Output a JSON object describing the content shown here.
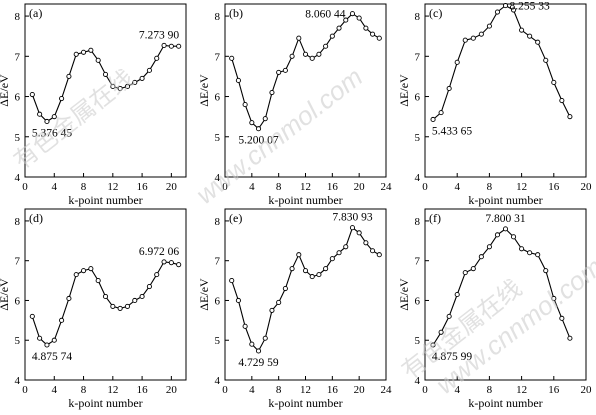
{
  "chart_data": [
    {
      "type": "line",
      "panel_label": "(a)",
      "xlabel": "k-point number",
      "ylabel": "ΔE/eV",
      "xlim": [
        0,
        22
      ],
      "ylim": [
        4,
        8.3
      ],
      "xticks": [
        0,
        4,
        8,
        12,
        16,
        20
      ],
      "yticks": [
        4,
        5,
        6,
        7,
        8
      ],
      "series": [
        {
          "x": [
            1,
            2,
            3,
            4,
            5,
            6,
            7,
            8,
            9,
            10,
            11,
            12,
            13,
            14,
            15,
            16,
            17,
            18,
            19,
            20,
            21
          ],
          "values": [
            6.05,
            5.56,
            5.38,
            5.5,
            5.95,
            6.5,
            7.05,
            7.1,
            7.15,
            6.9,
            6.55,
            6.25,
            6.2,
            6.25,
            6.35,
            6.45,
            6.65,
            6.95,
            7.27,
            7.25,
            7.25
          ]
        }
      ],
      "annotations": [
        {
          "text": "5.376 45",
          "x": 3,
          "y": 5.38,
          "pos": "below"
        },
        {
          "text": "7.273 90",
          "x": 19,
          "y": 7.27,
          "pos": "above"
        }
      ]
    },
    {
      "type": "line",
      "panel_label": "(b)",
      "xlabel": "k-point number",
      "ylabel": "ΔE/eV",
      "xlim": [
        0,
        24
      ],
      "ylim": [
        4,
        8.3
      ],
      "xticks": [
        0,
        4,
        8,
        12,
        16,
        20,
        24
      ],
      "yticks": [
        4,
        5,
        6,
        7,
        8
      ],
      "series": [
        {
          "x": [
            1,
            2,
            3,
            4,
            5,
            6,
            7,
            8,
            9,
            10,
            11,
            12,
            13,
            14,
            15,
            16,
            17,
            18,
            19,
            20,
            21,
            22,
            23
          ],
          "values": [
            6.95,
            6.4,
            5.8,
            5.35,
            5.2,
            5.45,
            6.1,
            6.6,
            6.65,
            7.0,
            7.45,
            7.05,
            6.95,
            7.05,
            7.25,
            7.5,
            7.7,
            7.9,
            8.06,
            7.95,
            7.7,
            7.55,
            7.45
          ]
        }
      ],
      "annotations": [
        {
          "text": "5.200 07",
          "x": 5,
          "y": 5.2,
          "pos": "below"
        },
        {
          "text": "8.060 44",
          "x": 19,
          "y": 8.06,
          "pos": "left"
        }
      ]
    },
    {
      "type": "line",
      "panel_label": "(c)",
      "xlabel": "k-point number",
      "ylabel": "ΔE/eV",
      "xlim": [
        0,
        20
      ],
      "ylim": [
        4,
        8.3
      ],
      "xticks": [
        0,
        4,
        8,
        12,
        16,
        20
      ],
      "yticks": [
        4,
        5,
        6,
        7,
        8
      ],
      "series": [
        {
          "x": [
            1,
            2,
            3,
            4,
            5,
            6,
            7,
            8,
            9,
            10,
            11,
            12,
            13,
            14,
            15,
            16,
            17,
            18
          ],
          "values": [
            5.43,
            5.6,
            6.2,
            6.85,
            7.4,
            7.45,
            7.55,
            7.75,
            8.1,
            8.26,
            8.15,
            7.65,
            7.5,
            7.35,
            6.9,
            6.35,
            5.9,
            5.5
          ]
        }
      ],
      "annotations": [
        {
          "text": "5.433 65",
          "x": 1,
          "y": 5.43,
          "pos": "below"
        },
        {
          "text": "8.255 33",
          "x": 10,
          "y": 8.26,
          "pos": "right"
        }
      ]
    },
    {
      "type": "line",
      "panel_label": "(d)",
      "xlabel": "k-point number",
      "ylabel": "ΔE/eV",
      "xlim": [
        0,
        22
      ],
      "ylim": [
        4,
        8.3
      ],
      "xticks": [
        0,
        4,
        8,
        12,
        16,
        20
      ],
      "yticks": [
        4,
        5,
        6,
        7,
        8
      ],
      "series": [
        {
          "x": [
            1,
            2,
            3,
            4,
            5,
            6,
            7,
            8,
            9,
            10,
            11,
            12,
            13,
            14,
            15,
            16,
            17,
            18,
            19,
            20,
            21
          ],
          "values": [
            5.6,
            5.05,
            4.88,
            5.0,
            5.5,
            6.05,
            6.65,
            6.75,
            6.8,
            6.5,
            6.1,
            5.85,
            5.8,
            5.85,
            6.0,
            6.1,
            6.35,
            6.65,
            6.97,
            6.95,
            6.9
          ]
        }
      ],
      "annotations": [
        {
          "text": "4.875 74",
          "x": 3,
          "y": 4.88,
          "pos": "below"
        },
        {
          "text": "6.972 06",
          "x": 19,
          "y": 6.97,
          "pos": "above"
        }
      ]
    },
    {
      "type": "line",
      "panel_label": "(e)",
      "xlabel": "k-point number",
      "ylabel": "ΔE/eV",
      "xlim": [
        0,
        24
      ],
      "ylim": [
        4,
        8.3
      ],
      "xticks": [
        0,
        4,
        8,
        12,
        16,
        20,
        24
      ],
      "yticks": [
        4,
        5,
        6,
        7,
        8
      ],
      "series": [
        {
          "x": [
            1,
            2,
            3,
            4,
            5,
            6,
            7,
            8,
            9,
            10,
            11,
            12,
            13,
            14,
            15,
            16,
            17,
            18,
            19,
            20,
            21,
            22,
            23
          ],
          "values": [
            6.5,
            6.0,
            5.35,
            4.9,
            4.73,
            5.05,
            5.75,
            5.95,
            6.3,
            6.8,
            7.15,
            6.75,
            6.6,
            6.65,
            6.8,
            7.05,
            7.2,
            7.35,
            7.83,
            7.7,
            7.45,
            7.25,
            7.15
          ]
        }
      ],
      "annotations": [
        {
          "text": "4.729 59",
          "x": 5,
          "y": 4.73,
          "pos": "below"
        },
        {
          "text": "7.830 93",
          "x": 19,
          "y": 7.83,
          "pos": "above"
        }
      ]
    },
    {
      "type": "line",
      "panel_label": "(f)",
      "xlabel": "k-point number",
      "ylabel": "ΔE/eV",
      "xlim": [
        0,
        20
      ],
      "ylim": [
        4,
        8.3
      ],
      "xticks": [
        0,
        4,
        8,
        12,
        16,
        20
      ],
      "yticks": [
        4,
        5,
        6,
        7,
        8
      ],
      "series": [
        {
          "x": [
            1,
            2,
            3,
            4,
            5,
            6,
            7,
            8,
            9,
            10,
            11,
            12,
            13,
            14,
            15,
            16,
            17,
            18
          ],
          "values": [
            4.88,
            5.2,
            5.6,
            6.15,
            6.7,
            6.8,
            7.1,
            7.35,
            7.65,
            7.8,
            7.6,
            7.3,
            7.2,
            7.15,
            6.75,
            6.05,
            5.55,
            5.05
          ]
        }
      ],
      "annotations": [
        {
          "text": "4.875 99",
          "x": 1,
          "y": 4.88,
          "pos": "below"
        },
        {
          "text": "7.800 31",
          "x": 10,
          "y": 7.8,
          "pos": "above"
        }
      ]
    }
  ],
  "watermark": {
    "text_cn": "有色金属在线",
    "text_url": "www.cnnmol.com"
  }
}
